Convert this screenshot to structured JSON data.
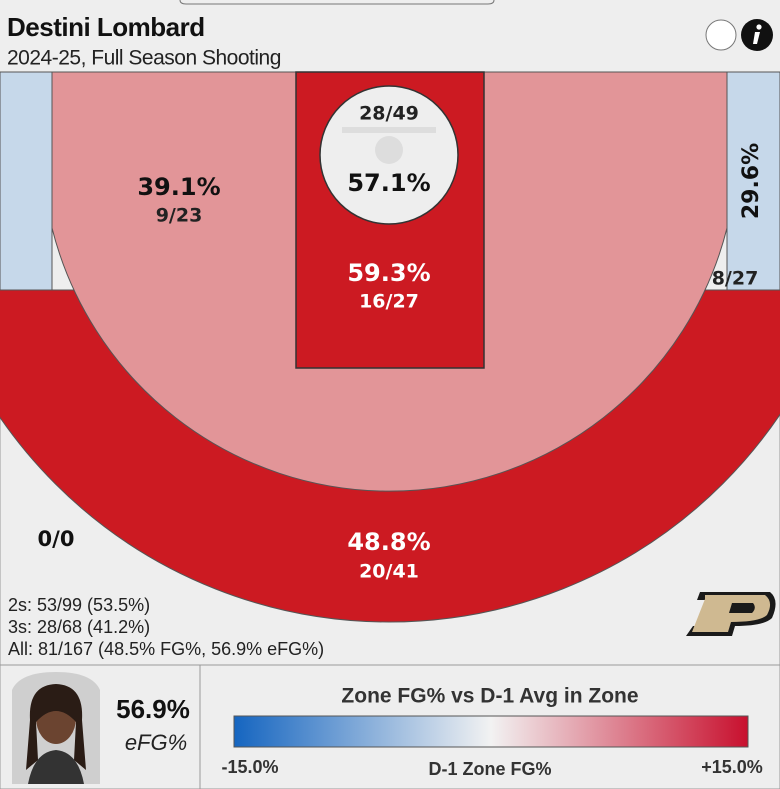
{
  "header": {
    "title": "Destini Lombard",
    "subtitle": "2024-25, Full Season Shooting"
  },
  "zones": {
    "rim": {
      "pct": "57.1%",
      "made": "28/49"
    },
    "paint": {
      "pct": "59.3%",
      "made": "16/27"
    },
    "mid_range": {
      "pct": "39.1%",
      "made": "9/23"
    },
    "right_corner_three": {
      "pct": "29.6%",
      "made": "8/27"
    },
    "left_corner_three": {
      "made": "0/0"
    },
    "above_break_three": {
      "pct": "48.8%",
      "made": "20/41"
    }
  },
  "summary": [
    "2s: 53/99 (53.5%)",
    "3s: 28/68 (41.2%)",
    "All: 81/167 (48.5% FG%, 56.9% eFG%)"
  ],
  "player": {
    "efg": "56.9%",
    "efg_label": "eFG%"
  },
  "legend": {
    "title": "Zone FG% vs D-1 Avg in Zone",
    "min_label": "-15.0%",
    "mid_label": "D-1 Zone FG%",
    "max_label": "+15.0%"
  }
}
